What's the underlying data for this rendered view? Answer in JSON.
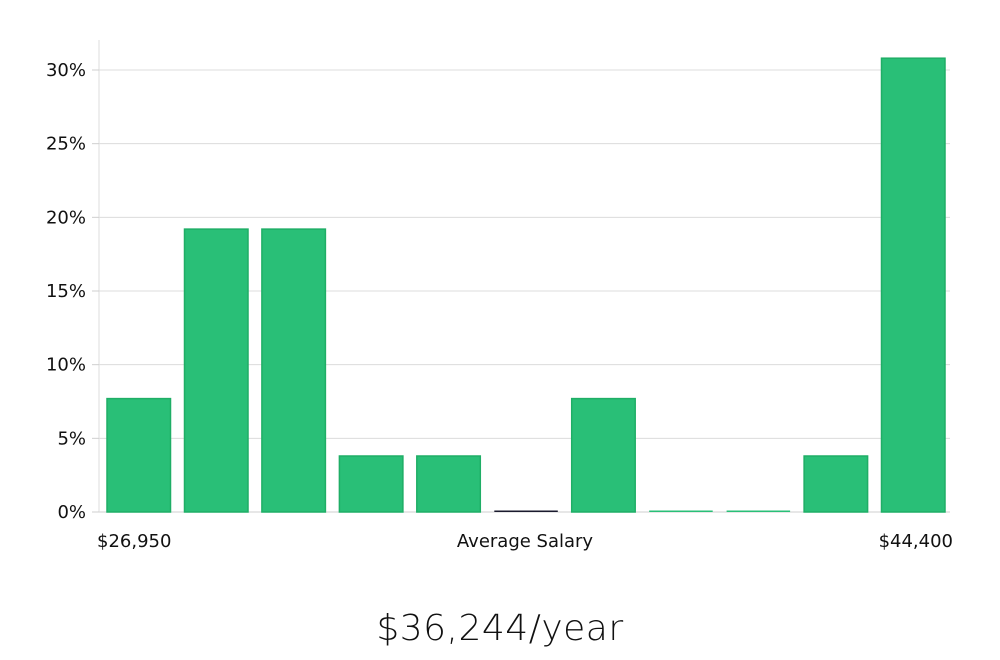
{
  "chart_data": {
    "type": "bar",
    "title": "",
    "xlabel": "Average Salary",
    "ylabel": "",
    "x_min_label": "$26,950",
    "x_max_label": "$44,400",
    "bins": 11,
    "values": [
      7.7,
      19.2,
      19.2,
      3.8,
      3.8,
      0,
      7.7,
      0,
      0,
      3.8,
      30.8
    ],
    "y_ticks": [
      "0%",
      "5%",
      "10%",
      "15%",
      "20%",
      "25%",
      "30%"
    ],
    "ylim": [
      0,
      32.5
    ],
    "grid": true,
    "bar_color": "#29bf77",
    "bar_edge_color": "#1fae66",
    "zero_bar_colors": [
      "#1a1a2e",
      "#29bf77",
      "#29bf77"
    ]
  },
  "summary": {
    "salary_text": "$36,244/year"
  }
}
